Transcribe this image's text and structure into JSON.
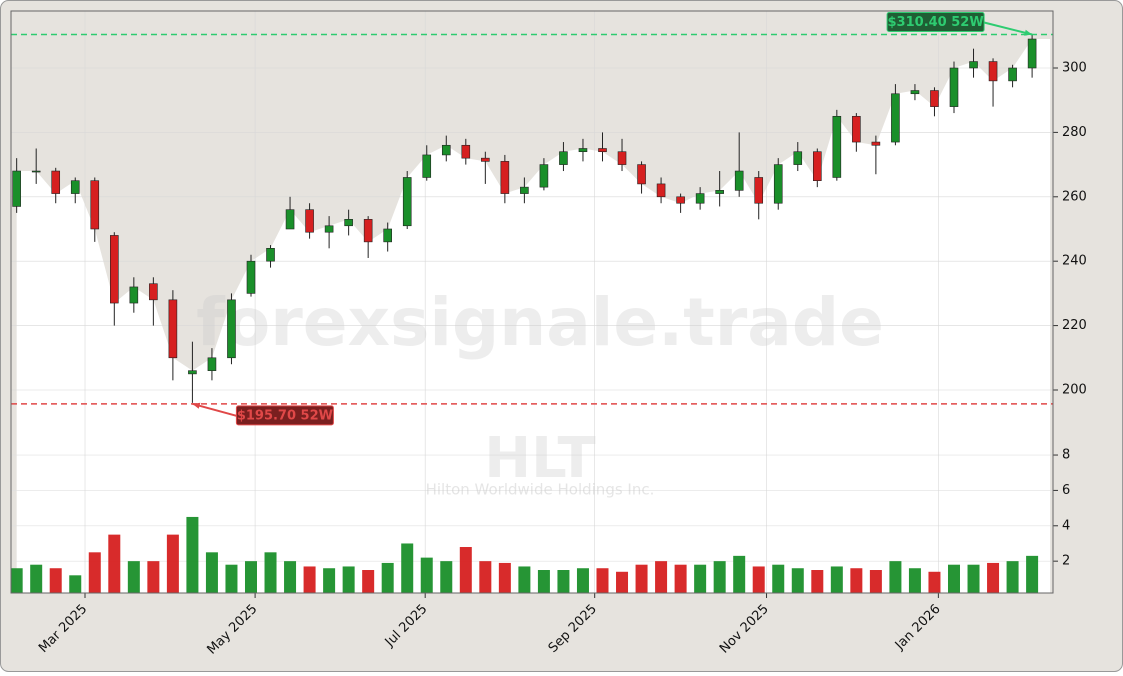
{
  "chart_data": {
    "type": "candlestick",
    "watermark": "forexsignale.trade",
    "symbol": "HLT",
    "company": "Hilton Worldwide Holdings Inc.",
    "xlim": [
      -0.29,
      53.07
    ],
    "xticks": [
      {
        "value": 3.5,
        "label": "Mar 2025"
      },
      {
        "value": 12.21,
        "label": "May 2025"
      },
      {
        "value": 20.92,
        "label": "Jul 2025"
      },
      {
        "value": 29.6,
        "label": "Sep 2025"
      },
      {
        "value": 38.4,
        "label": "Nov 2025"
      },
      {
        "value": 47.2,
        "label": "Jan 2026"
      }
    ],
    "ylim": [
      185.4,
      317.7
    ],
    "yticks": [
      200,
      220,
      240,
      260,
      280,
      300
    ],
    "volume_ylim": [
      0.2,
      8.85
    ],
    "volume_yticks": [
      2,
      4,
      6,
      8
    ],
    "up_color": "#1a8f2a",
    "down_color": "#d62020",
    "grid": true,
    "open": [
      257,
      268,
      268,
      261,
      265,
      248,
      227,
      233,
      228,
      205,
      206,
      210,
      230,
      240,
      250,
      256,
      249,
      251,
      253,
      246,
      251,
      266,
      273,
      276,
      272,
      271,
      261,
      263,
      270,
      274,
      275,
      274,
      270,
      264,
      260,
      258,
      261,
      262,
      266,
      258,
      270,
      274,
      266,
      285,
      277,
      277,
      292,
      293,
      288,
      300,
      302,
      296,
      300
    ],
    "high": [
      272,
      275,
      269,
      266,
      266,
      249,
      235,
      235,
      231,
      215,
      213,
      230,
      242,
      245,
      260,
      258,
      254,
      256,
      254,
      252,
      268,
      276,
      279,
      278,
      274,
      273,
      266,
      272,
      277,
      278,
      280,
      278,
      271,
      266,
      261,
      263,
      268,
      280,
      268,
      272,
      277,
      275,
      287,
      286,
      279,
      295,
      295,
      294,
      302,
      306,
      303,
      301,
      310.4
    ],
    "low": [
      255,
      264,
      258,
      258,
      246,
      220,
      224,
      220,
      203,
      196,
      203,
      208,
      229,
      238,
      250,
      247,
      244,
      248,
      241,
      243,
      250,
      265,
      271,
      270,
      264,
      258,
      258,
      262,
      268,
      271,
      271,
      268,
      261,
      258,
      255,
      256,
      257,
      260,
      253,
      256,
      268,
      263,
      265,
      274,
      267,
      276,
      290,
      285,
      286,
      297,
      288,
      294,
      297
    ],
    "close": [
      268,
      268,
      261,
      265,
      250,
      227,
      232,
      228,
      210,
      206,
      210,
      228,
      240,
      244,
      256,
      249,
      251,
      253,
      246,
      250,
      266,
      273,
      276,
      272,
      271,
      261,
      263,
      270,
      274,
      275,
      274,
      270,
      264,
      260,
      258,
      261,
      262,
      268,
      258,
      270,
      274,
      265,
      285,
      277,
      276,
      292,
      293,
      288,
      300,
      302,
      296,
      300,
      309
    ],
    "volume": [
      1.6,
      1.8,
      1.6,
      1.2,
      2.5,
      3.5,
      2.0,
      2.0,
      3.5,
      4.5,
      2.5,
      1.8,
      2.0,
      2.5,
      2.0,
      1.7,
      1.6,
      1.7,
      1.5,
      1.9,
      3.0,
      2.2,
      2.0,
      2.8,
      2.0,
      1.9,
      1.7,
      1.5,
      1.5,
      1.6,
      1.6,
      1.4,
      1.8,
      2.0,
      1.8,
      1.8,
      2.0,
      2.3,
      1.7,
      1.8,
      1.6,
      1.5,
      1.7,
      1.6,
      1.5,
      2.0,
      1.6,
      1.4,
      1.8,
      1.8,
      1.9,
      2.0,
      2.3
    ],
    "annotations": [
      {
        "label": "$310.40 52W",
        "value": 310.4,
        "color": "#2ecc71"
      },
      {
        "label": "$195.70 52W",
        "value": 195.7,
        "color": "#e04848"
      }
    ]
  }
}
